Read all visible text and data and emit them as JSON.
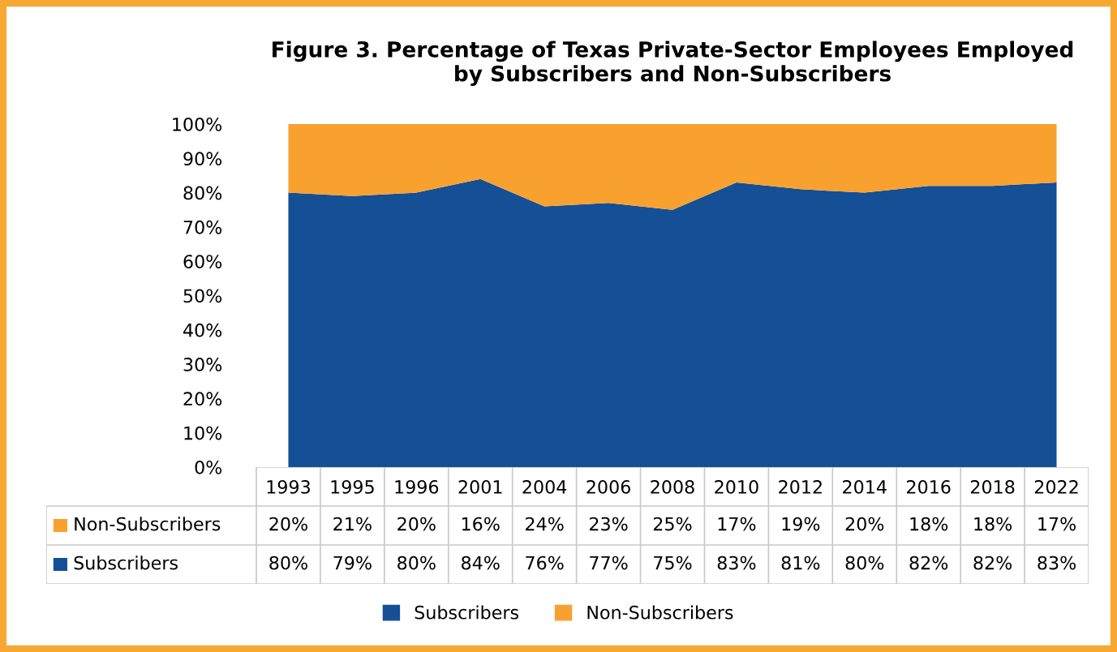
{
  "chart_data": {
    "type": "area",
    "stacked": true,
    "title": "Figure 3. Percentage of Texas Private-Sector Employees Employed\nby Subscribers and Non-Subscribers",
    "categories": [
      "1993",
      "1995",
      "1996",
      "2001",
      "2004",
      "2006",
      "2008",
      "2010",
      "2012",
      "2014",
      "2016",
      "2018",
      "2022"
    ],
    "series": [
      {
        "name": "Subscribers",
        "color": "#154f96",
        "values": [
          80,
          79,
          80,
          84,
          76,
          77,
          75,
          83,
          81,
          80,
          82,
          82,
          83
        ],
        "value_labels": [
          "80%",
          "79%",
          "80%",
          "84%",
          "76%",
          "77%",
          "75%",
          "83%",
          "81%",
          "80%",
          "82%",
          "82%",
          "83%"
        ]
      },
      {
        "name": "Non-Subscribers",
        "color": "#f9a12e",
        "values": [
          20,
          21,
          20,
          16,
          24,
          23,
          25,
          17,
          19,
          20,
          18,
          18,
          17
        ],
        "value_labels": [
          "20%",
          "21%",
          "20%",
          "16%",
          "24%",
          "23%",
          "25%",
          "17%",
          "19%",
          "20%",
          "18%",
          "18%",
          "17%"
        ]
      }
    ],
    "ylim": [
      0,
      100
    ],
    "yticks": [
      {
        "value": 0,
        "label": "0%"
      },
      {
        "value": 10,
        "label": "10%"
      },
      {
        "value": 20,
        "label": "20%"
      },
      {
        "value": 30,
        "label": "30%"
      },
      {
        "value": 40,
        "label": "40%"
      },
      {
        "value": 50,
        "label": "50%"
      },
      {
        "value": 60,
        "label": "60%"
      },
      {
        "value": 70,
        "label": "70%"
      },
      {
        "value": 80,
        "label": "80%"
      },
      {
        "value": 90,
        "label": "90%"
      },
      {
        "value": 100,
        "label": "100%"
      }
    ],
    "grid": false,
    "legend": "bottom"
  }
}
